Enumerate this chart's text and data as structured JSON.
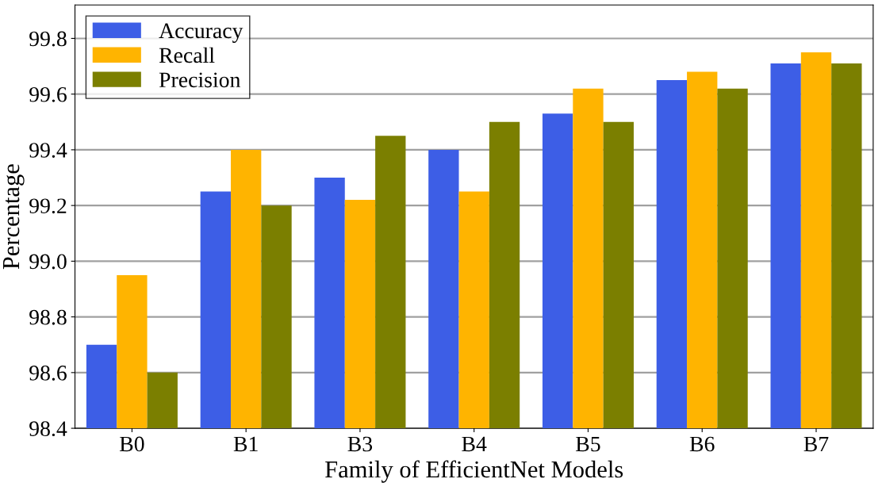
{
  "chart_data": {
    "type": "bar",
    "xlabel": "Family of EfficientNet Models",
    "ylabel": "Percentage",
    "categories": [
      "B0",
      "B1",
      "B3",
      "B4",
      "B5",
      "B6",
      "B7"
    ],
    "series": [
      {
        "name": "Accuracy",
        "color": "#3d5ee6",
        "values": [
          98.7,
          99.25,
          99.3,
          99.4,
          99.53,
          99.65,
          99.71
        ]
      },
      {
        "name": "Recall",
        "color": "#ffb400",
        "values": [
          98.95,
          99.4,
          99.22,
          99.25,
          99.62,
          99.68,
          99.75
        ]
      },
      {
        "name": "Precision",
        "color": "#7b7f00",
        "values": [
          98.6,
          99.2,
          99.45,
          99.5,
          99.5,
          99.62,
          99.71
        ]
      }
    ],
    "ylim": [
      98.4,
      99.92
    ],
    "yticks": [
      98.4,
      98.6,
      98.8,
      {
        "value": 99.0,
        "label": "99.0"
      },
      99.2,
      99.4,
      99.6,
      99.8
    ],
    "grid": "y",
    "legend": "top left"
  }
}
